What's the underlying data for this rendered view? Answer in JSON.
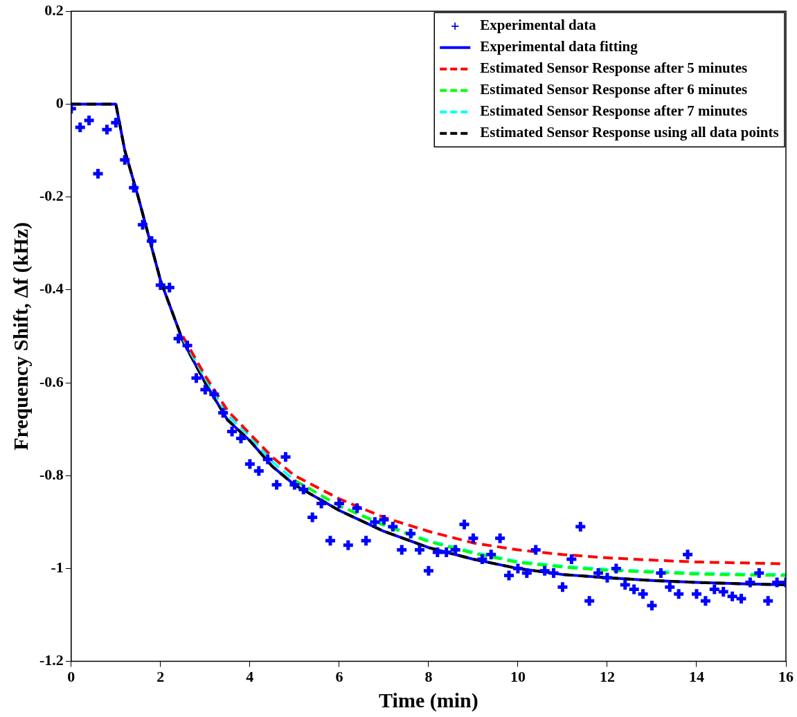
{
  "chart_data": {
    "type": "scatter",
    "xlabel": "Time (min)",
    "ylabel": "Frequency Shift, Δf (kHz)",
    "xlim": [
      0,
      16
    ],
    "ylim": [
      -1.2,
      0.2
    ],
    "xticks": [
      0,
      2,
      4,
      6,
      8,
      10,
      12,
      14,
      16
    ],
    "yticks": [
      0.2,
      0,
      -0.2,
      -0.4,
      -0.6,
      -0.8,
      -1,
      -1.2
    ],
    "grid": false,
    "legend": "top right",
    "series": [
      {
        "name": "Experimental data",
        "type": "scatter",
        "marker": "cross",
        "color": "#0000ff",
        "x": [
          0,
          0.2,
          0.4,
          0.6,
          0.8,
          1,
          1.2,
          1.4,
          1.6,
          1.8,
          2,
          2.2,
          2.4,
          2.6,
          2.8,
          3,
          3.2,
          3.4,
          3.6,
          3.8,
          4,
          4.2,
          4.4,
          4.6,
          4.8,
          5,
          5.2,
          5.4,
          5.6,
          5.8,
          6,
          6.2,
          6.4,
          6.6,
          6.8,
          7,
          7.2,
          7.4,
          7.6,
          7.8,
          8,
          8.2,
          8.4,
          8.6,
          8.8,
          9,
          9.2,
          9.4,
          9.6,
          9.8,
          10,
          10.2,
          10.4,
          10.6,
          10.8,
          11,
          11.2,
          11.4,
          11.6,
          11.8,
          12,
          12.2,
          12.4,
          12.6,
          12.8,
          13,
          13.2,
          13.4,
          13.6,
          13.8,
          14,
          14.2,
          14.4,
          14.6,
          14.8,
          15,
          15.2,
          15.4,
          15.6,
          15.8,
          16
        ],
        "values": [
          -0.01,
          -0.05,
          -0.035,
          -0.15,
          -0.055,
          -0.04,
          -0.12,
          -0.18,
          -0.26,
          -0.295,
          -0.39,
          -0.395,
          -0.505,
          -0.52,
          -0.59,
          -0.615,
          -0.625,
          -0.665,
          -0.705,
          -0.72,
          -0.775,
          -0.79,
          -0.765,
          -0.82,
          -0.76,
          -0.82,
          -0.83,
          -0.89,
          -0.86,
          -0.94,
          -0.86,
          -0.95,
          -0.87,
          -0.94,
          -0.9,
          -0.895,
          -0.91,
          -0.96,
          -0.925,
          -0.96,
          -1.005,
          -0.965,
          -0.965,
          -0.96,
          -0.905,
          -0.935,
          -0.98,
          -0.97,
          -0.935,
          -1.015,
          -1,
          -1.01,
          -0.96,
          -1.005,
          -1.01,
          -1.04,
          -0.98,
          -0.91,
          -1.07,
          -1.01,
          -1.02,
          -1,
          -1.035,
          -1.045,
          -1.055,
          -1.08,
          -1.01,
          -1.04,
          -1.055,
          -0.97,
          -1.055,
          -1.07,
          -1.045,
          -1.05,
          -1.06,
          -1.065,
          -1.03,
          -1.01,
          -1.07,
          -1.03,
          -1.03
        ]
      },
      {
        "name": "Experimental data fitting",
        "type": "line",
        "line_style": "solid",
        "color": "#0000ff",
        "x": [
          0,
          1,
          1.2,
          1.5,
          2,
          2.5,
          3,
          3.5,
          4,
          4.5,
          5,
          6,
          7,
          8,
          9,
          10,
          11,
          12,
          13,
          14,
          15,
          16
        ],
        "values": [
          0,
          0,
          -0.1,
          -0.2,
          -0.38,
          -0.51,
          -0.6,
          -0.68,
          -0.725,
          -0.78,
          -0.82,
          -0.875,
          -0.92,
          -0.955,
          -0.98,
          -1,
          -1.013,
          -1.02,
          -1.026,
          -1.03,
          -1.033,
          -1.035
        ]
      },
      {
        "name": "Estimated Sensor Response after 5 minutes",
        "type": "line",
        "line_style": "dashed",
        "color": "#ff0000",
        "x": [
          2.5,
          3,
          3.5,
          4,
          4.5,
          5,
          6,
          7,
          8,
          9,
          10,
          11,
          12,
          13,
          14,
          15,
          16
        ],
        "values": [
          -0.5,
          -0.585,
          -0.66,
          -0.71,
          -0.76,
          -0.8,
          -0.85,
          -0.89,
          -0.92,
          -0.945,
          -0.96,
          -0.97,
          -0.977,
          -0.982,
          -0.986,
          -0.988,
          -0.99
        ]
      },
      {
        "name": "Estimated Sensor Response after 6 minutes",
        "type": "line",
        "line_style": "dashed",
        "color": "#00ff00",
        "x": [
          5,
          6,
          7,
          8,
          9,
          10,
          11,
          12,
          13,
          14,
          15,
          16
        ],
        "values": [
          -0.81,
          -0.865,
          -0.907,
          -0.942,
          -0.967,
          -0.987,
          -0.997,
          -1.004,
          -1.008,
          -1.012,
          -1.014,
          -1.015
        ]
      },
      {
        "name": "Estimated Sensor Response after 7 minutes",
        "type": "line",
        "line_style": "dashed",
        "color": "#00ffff",
        "x": [
          2.5,
          3,
          3.5,
          4,
          4.5,
          5,
          6,
          7,
          8,
          9,
          10,
          11,
          12,
          13,
          14,
          15,
          16
        ],
        "values": [
          -0.505,
          -0.59,
          -0.67,
          -0.715,
          -0.77,
          -0.81,
          -0.865,
          -0.905,
          -0.94,
          -0.965,
          -0.985,
          -0.995,
          -1.002,
          -1.006,
          -1.01,
          -1.012,
          -1.013
        ]
      },
      {
        "name": "Estimated Sensor Response using all data points",
        "type": "line",
        "line_style": "dashed",
        "color": "#000000",
        "x": [
          0,
          1,
          1.2,
          1.5,
          2,
          2.5,
          3,
          3.5,
          4,
          4.5,
          5,
          6,
          7,
          8,
          9,
          10,
          11,
          12,
          13,
          14,
          15,
          16
        ],
        "values": [
          0,
          0,
          -0.1,
          -0.2,
          -0.38,
          -0.51,
          -0.6,
          -0.68,
          -0.725,
          -0.78,
          -0.82,
          -0.875,
          -0.92,
          -0.955,
          -0.98,
          -1,
          -1.013,
          -1.02,
          -1.026,
          -1.03,
          -1.033,
          -1.035
        ]
      }
    ]
  }
}
